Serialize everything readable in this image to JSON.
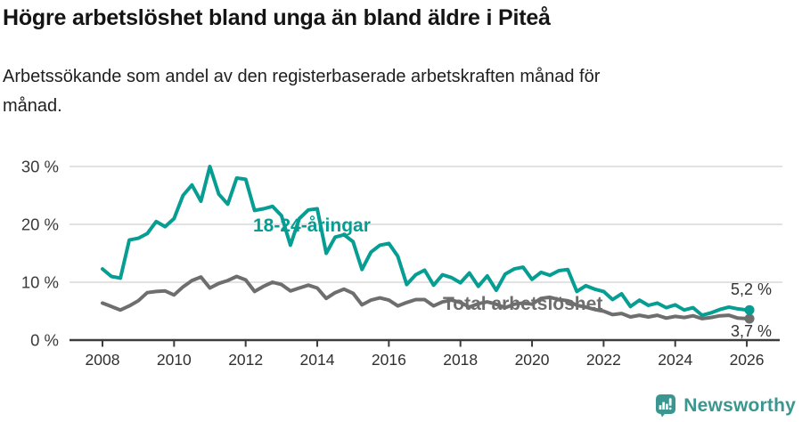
{
  "header": {
    "title": "Högre arbetslöshet bland unga än bland äldre i Piteå",
    "subtitle_lines": [
      "Arbetssökande som andel av den registerbaserade arbetskraften månad för",
      "månad."
    ]
  },
  "chart_data": {
    "type": "line",
    "title": "Högre arbetslöshet bland unga än bland äldre i Piteå",
    "subtitle": "Arbetssökande som andel av den registerbaserade arbetskraften månad för månad.",
    "xlabel": "",
    "ylabel": "",
    "y_unit": "%",
    "grid": "horizontal",
    "legend": "inline-labels",
    "ylim": [
      0,
      31
    ],
    "xlim": [
      2007.1,
      2026.9
    ],
    "x_ticks": [
      2008,
      2010,
      2012,
      2014,
      2016,
      2018,
      2020,
      2022,
      2024,
      2026
    ],
    "x_tick_labels": [
      "2008",
      "2010",
      "2012",
      "2014",
      "2016",
      "2018",
      "2020",
      "2022",
      "2024",
      "2026"
    ],
    "y_ticks": [
      0,
      10,
      20,
      30
    ],
    "y_tick_labels": [
      "0 %",
      "10 %",
      "20 %",
      "30 %"
    ],
    "grid_color": "#d9d9d9",
    "axis_color": "#3c3c3c",
    "series": [
      {
        "name": "18-24-åringar",
        "color": "#069d93",
        "end_label": "5,2 %",
        "end_value": 5.2,
        "x_start": 2008,
        "x_step": 0.25,
        "values": [
          12.3,
          11.0,
          10.7,
          17.3,
          17.6,
          18.4,
          20.5,
          19.6,
          21.0,
          25.0,
          26.8,
          24.0,
          30.0,
          25.2,
          23.5,
          28.0,
          27.8,
          22.4,
          22.7,
          23.1,
          21.5,
          16.4,
          21.0,
          22.5,
          22.7,
          15.0,
          17.8,
          18.2,
          17.0,
          12.2,
          15.2,
          16.4,
          16.7,
          14.5,
          9.6,
          11.3,
          12.1,
          9.5,
          11.3,
          10.8,
          9.9,
          11.6,
          9.3,
          11.1,
          8.6,
          11.4,
          12.3,
          12.6,
          10.5,
          11.7,
          11.2,
          12.0,
          12.2,
          8.4,
          9.4,
          8.8,
          8.4,
          7.0,
          8.0,
          5.8,
          6.9,
          6.0,
          6.4,
          5.6,
          6.1,
          5.2,
          5.6,
          4.3,
          4.7,
          5.3,
          5.7,
          5.4,
          5.2
        ]
      },
      {
        "name": "Total arbetslöshet",
        "color": "#6e6e6e",
        "end_label": "3,7 %",
        "end_value": 3.7,
        "x_start": 2008,
        "x_step": 0.25,
        "values": [
          6.4,
          5.8,
          5.2,
          5.9,
          6.8,
          8.2,
          8.4,
          8.5,
          7.8,
          9.2,
          10.3,
          10.9,
          9.0,
          9.8,
          10.3,
          11.0,
          10.4,
          8.4,
          9.3,
          10.0,
          9.6,
          8.5,
          9.0,
          9.5,
          9.0,
          7.2,
          8.2,
          8.8,
          8.1,
          6.1,
          6.9,
          7.3,
          6.9,
          5.9,
          6.5,
          7.0,
          7.0,
          5.9,
          6.6,
          6.9,
          6.5,
          5.7,
          6.3,
          6.6,
          6.2,
          5.6,
          6.2,
          6.4,
          6.2,
          7.2,
          7.4,
          7.0,
          6.8,
          6.0,
          5.7,
          5.3,
          5.0,
          4.4,
          4.6,
          4.0,
          4.3,
          4.0,
          4.3,
          3.8,
          4.1,
          3.9,
          4.2,
          3.7,
          3.9,
          4.2,
          4.3,
          3.8,
          3.7
        ]
      }
    ]
  },
  "branding": {
    "logo_text": "Newsworthy",
    "logo_color": "#3b968f",
    "logo_icon": "speech-bubble-bar-chart-exclamation"
  }
}
